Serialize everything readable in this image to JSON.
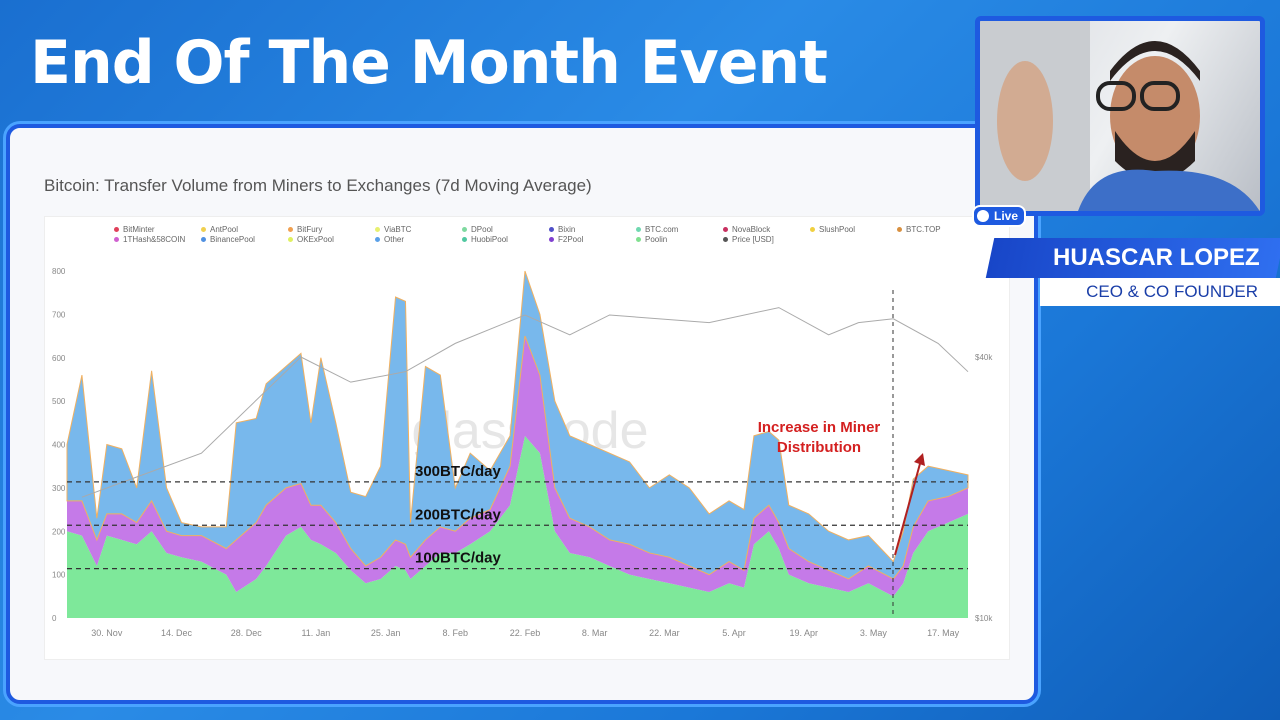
{
  "overlay": {
    "title": "End Of The Month Event",
    "live_label": "Live",
    "speaker_name": "HUASCAR LOPEZ",
    "speaker_role": "CEO & CO FOUNDER"
  },
  "colors": {
    "accent": "#1e5ae0",
    "green": "#7ee89a",
    "purple": "#c57ae8",
    "teal": "#7fd9cf",
    "blue": "#78b8ec",
    "price": "#bdbdbd",
    "annotation": "#d42020"
  },
  "chart_data": {
    "type": "area",
    "stacked": true,
    "title": "Bitcoin: Transfer Volume from Miners to Exchanges (7d Moving Average)",
    "watermark": "glassnode",
    "legend": [
      {
        "name": "BitMinter",
        "color": "#e0405a"
      },
      {
        "name": "AntPool",
        "color": "#f0d050"
      },
      {
        "name": "BitFury",
        "color": "#f0a050"
      },
      {
        "name": "ViaBTC",
        "color": "#e8f070"
      },
      {
        "name": "DPool",
        "color": "#7fd9a0"
      },
      {
        "name": "Bixin",
        "color": "#5050c8"
      },
      {
        "name": "BTC.com",
        "color": "#70d8b0"
      },
      {
        "name": "NovaBlock",
        "color": "#c83060"
      },
      {
        "name": "SlushPool",
        "color": "#f0d040"
      },
      {
        "name": "BTC.TOP",
        "color": "#d89040"
      },
      {
        "name": "1THash&58COIN",
        "color": "#d060d0"
      },
      {
        "name": "BinancePool",
        "color": "#5090e0"
      },
      {
        "name": "OKExPool",
        "color": "#e0f060"
      },
      {
        "name": "Other",
        "color": "#5aa0e8"
      },
      {
        "name": "HuobiPool",
        "color": "#50c8a0"
      },
      {
        "name": "F2Pool",
        "color": "#8040d0"
      },
      {
        "name": "Poolin",
        "color": "#80e090"
      },
      {
        "name": "Price [USD]",
        "color": "#555555"
      }
    ],
    "legend_placement": "top",
    "x_ticks": [
      "30. Nov",
      "14. Dec",
      "28. Dec",
      "11. Jan",
      "25. Jan",
      "8. Feb",
      "22. Feb",
      "8. Mar",
      "22. Mar",
      "5. Apr",
      "19. Apr",
      "3. May",
      "17. May"
    ],
    "y_ticks": [
      0,
      100,
      200,
      300,
      400,
      500,
      600,
      700,
      800
    ],
    "ylim": [
      0,
      800
    ],
    "y2_ticks": [
      "$10k",
      "$40k"
    ],
    "y2lim_usd": [
      10000,
      40000
    ],
    "y2_scale": "log",
    "reference_lines": [
      {
        "value": 300,
        "label": "300BTC/day"
      },
      {
        "value": 200,
        "label": "200BTC/day"
      },
      {
        "value": 100,
        "label": "100BTC/day"
      }
    ],
    "annotation": "Increase in Miner Distribution",
    "x": [
      "2020-11-22",
      "2020-11-25",
      "2020-11-28",
      "2020-11-30",
      "2020-12-03",
      "2020-12-06",
      "2020-12-09",
      "2020-12-12",
      "2020-12-15",
      "2020-12-19",
      "2020-12-24",
      "2020-12-26",
      "2020-12-30",
      "2021-01-01",
      "2021-01-05",
      "2021-01-08",
      "2021-01-10",
      "2021-01-12",
      "2021-01-15",
      "2021-01-18",
      "2021-01-21",
      "2021-01-24",
      "2021-01-27",
      "2021-01-29",
      "2021-01-30",
      "2021-02-02",
      "2021-02-05",
      "2021-02-08",
      "2021-02-11",
      "2021-02-15",
      "2021-02-19",
      "2021-02-22",
      "2021-02-25",
      "2021-02-28",
      "2021-03-03",
      "2021-03-07",
      "2021-03-11",
      "2021-03-15",
      "2021-03-19",
      "2021-03-23",
      "2021-03-27",
      "2021-03-31",
      "2021-04-04",
      "2021-04-07",
      "2021-04-09",
      "2021-04-12",
      "2021-04-14",
      "2021-04-16",
      "2021-04-20",
      "2021-04-24",
      "2021-04-28",
      "2021-05-02",
      "2021-05-07",
      "2021-05-09",
      "2021-05-11",
      "2021-05-14",
      "2021-05-18",
      "2021-05-22"
    ],
    "series": [
      {
        "name": "Poolin",
        "color": "#7ee89a",
        "values": [
          200,
          190,
          120,
          190,
          180,
          170,
          200,
          150,
          140,
          130,
          100,
          60,
          90,
          120,
          190,
          210,
          180,
          170,
          150,
          110,
          80,
          90,
          120,
          110,
          90,
          120,
          150,
          150,
          170,
          200,
          260,
          420,
          380,
          200,
          150,
          140,
          120,
          100,
          90,
          80,
          70,
          60,
          80,
          70,
          170,
          200,
          160,
          100,
          80,
          70,
          60,
          80,
          50,
          80,
          150,
          200,
          220,
          240
        ],
        "label_values": null
      },
      {
        "name": "1THash&58COIN",
        "color": "#c57ae8",
        "values": [
          70,
          80,
          60,
          50,
          60,
          50,
          70,
          50,
          50,
          60,
          60,
          120,
          130,
          140,
          110,
          100,
          80,
          90,
          70,
          50,
          40,
          50,
          60,
          60,
          50,
          60,
          60,
          50,
          60,
          50,
          90,
          230,
          180,
          100,
          80,
          70,
          60,
          70,
          60,
          60,
          50,
          40,
          50,
          40,
          60,
          60,
          60,
          60,
          50,
          40,
          30,
          40,
          40,
          40,
          60,
          70,
          60,
          60
        ]
      },
      {
        "name": "Other",
        "color": "#78b8ec",
        "values": [
          130,
          290,
          50,
          160,
          150,
          80,
          300,
          100,
          30,
          20,
          50,
          270,
          240,
          280,
          280,
          300,
          190,
          340,
          230,
          130,
          160,
          210,
          560,
          560,
          80,
          400,
          350,
          100,
          150,
          90,
          70,
          150,
          140,
          200,
          190,
          190,
          200,
          190,
          150,
          190,
          180,
          140,
          140,
          140,
          190,
          170,
          190,
          100,
          110,
          90,
          90,
          70,
          40,
          80,
          110,
          80,
          60,
          30
        ]
      }
    ],
    "price_usd": {
      "x": [
        "2020-11-25",
        "2020-12-19",
        "2021-01-08",
        "2021-01-18",
        "2021-01-29",
        "2021-02-08",
        "2021-02-22",
        "2021-03-03",
        "2021-03-11",
        "2021-03-31",
        "2021-04-14",
        "2021-04-24",
        "2021-04-30",
        "2021-05-07",
        "2021-05-16",
        "2021-05-22"
      ],
      "values": [
        19000,
        24000,
        40000,
        35000,
        37000,
        43000,
        50000,
        45000,
        50000,
        48000,
        52000,
        45000,
        48000,
        49000,
        43000,
        37000
      ]
    }
  }
}
